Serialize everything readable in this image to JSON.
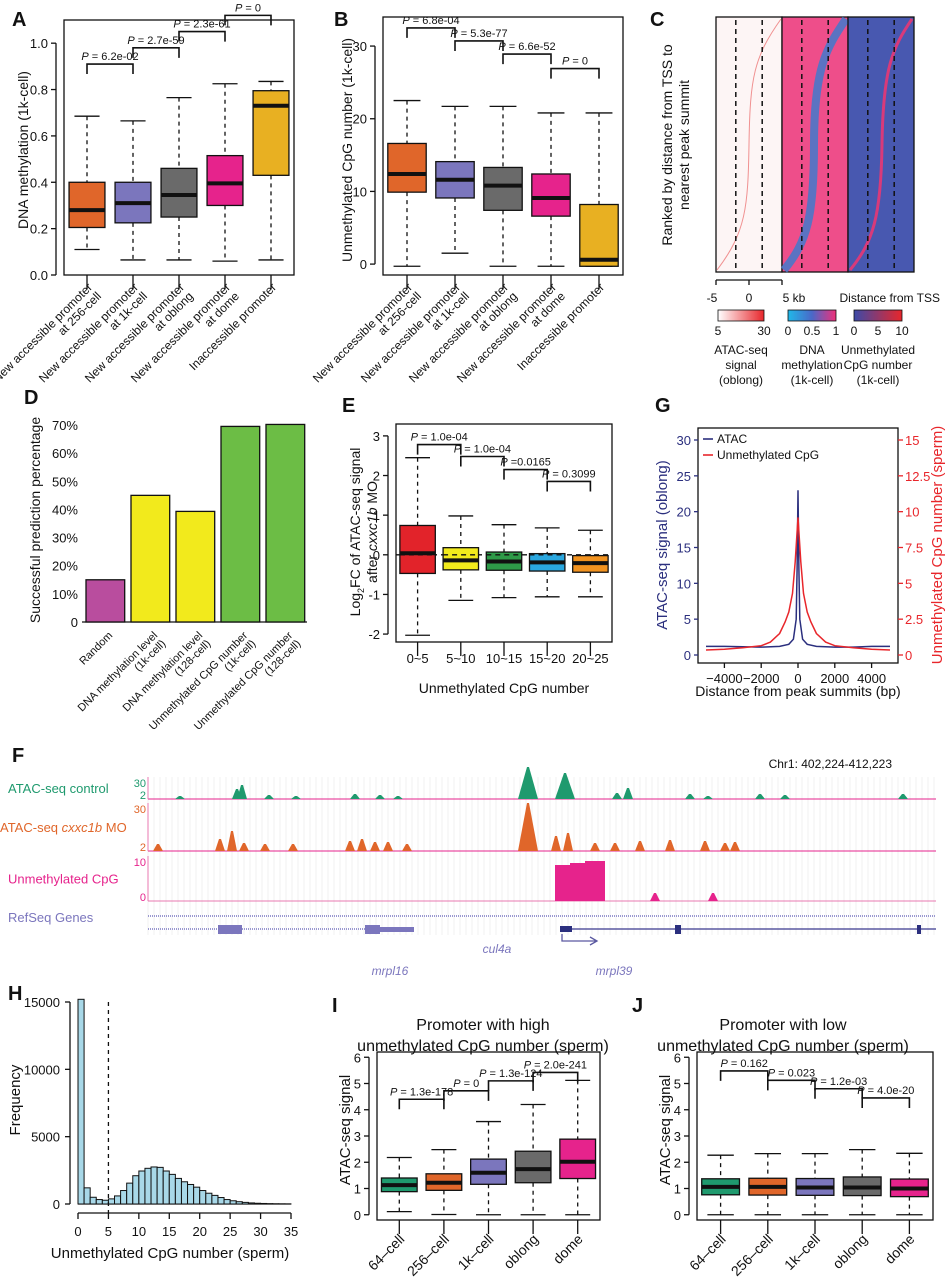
{
  "panels": {
    "A": "A",
    "B": "B",
    "C": "C",
    "D": "D",
    "E": "E",
    "F": "F",
    "G": "G",
    "H": "H",
    "I": "I",
    "J": "J"
  },
  "chart_data": [
    {
      "id": "A",
      "type": "boxplot",
      "ylabel": "DNA methylation (1k-cell)",
      "ylim": [
        0,
        1.1
      ],
      "yticks": [
        "0.0",
        "0.2",
        "0.4",
        "0.6",
        "0.8",
        "1.0"
      ],
      "ytick_values": [
        0,
        0.2,
        0.4,
        0.6,
        0.8,
        1.0
      ],
      "categories": [
        "New accessible promoter at 256-cell",
        "New accessible promoter at 1k-cell",
        "New accessible promoter at oblong",
        "New accessible promoter at dome",
        "Inaccessible promoter"
      ],
      "category_lines": [
        [
          "New accessible promoter",
          "at 256-cell"
        ],
        [
          "New accessible promoter",
          "at 1k-cell"
        ],
        [
          "New accessible promoter",
          "at oblong"
        ],
        [
          "New accessible promoter",
          "at dome"
        ],
        [
          "Inaccessible promoter",
          ""
        ]
      ],
      "colors": [
        "#e0662a",
        "#7b76bd",
        "#6a6a6a",
        "#e6238c",
        "#e8b022"
      ],
      "boxes": [
        {
          "min": 0.11,
          "q1": 0.205,
          "median": 0.28,
          "q3": 0.4,
          "max": 0.685
        },
        {
          "min": 0.065,
          "q1": 0.225,
          "median": 0.31,
          "q3": 0.4,
          "max": 0.665
        },
        {
          "min": 0.065,
          "q1": 0.25,
          "median": 0.345,
          "q3": 0.46,
          "max": 0.765
        },
        {
          "min": 0.06,
          "q1": 0.3,
          "median": 0.395,
          "q3": 0.515,
          "max": 0.825
        },
        {
          "min": 0.065,
          "q1": 0.43,
          "median": 0.73,
          "q3": 0.795,
          "max": 0.835
        }
      ],
      "pvalues": [
        {
          "from": 0,
          "to": 1,
          "label": "P = 6.2e-02",
          "y": 0.91
        },
        {
          "from": 1,
          "to": 2,
          "label": "P = 2.7e-59",
          "y": 0.98
        },
        {
          "from": 2,
          "to": 3,
          "label": "P = 2.3e-61",
          "y": 1.05
        },
        {
          "from": 3,
          "to": 4,
          "label": "P = 0",
          "y": 1.12
        }
      ]
    },
    {
      "id": "B",
      "type": "boxplot",
      "ylabel": "Unmethylated CpG number (1k-cell)",
      "ylim": [
        -1.5,
        34
      ],
      "yticks": [
        "0",
        "10",
        "20",
        "30"
      ],
      "ytick_values": [
        0,
        10,
        20,
        30
      ],
      "categories": [
        "New accessible promoter at 256-cell",
        "New accessible promoter at 1k-cell",
        "New accessible promoter at oblong",
        "New accessible promoter at dome",
        "Inaccessible promoter"
      ],
      "category_lines": [
        [
          "New accessible promoter",
          "at 256-cell"
        ],
        [
          "New accessible promoter",
          "at 1k-cell"
        ],
        [
          "New accessible promoter",
          "at oblong"
        ],
        [
          "New accessible promoter",
          "at dome"
        ],
        [
          "Inaccessible promoter",
          ""
        ]
      ],
      "colors": [
        "#e0662a",
        "#7b76bd",
        "#6a6a6a",
        "#e6238c",
        "#e8b022"
      ],
      "boxes": [
        {
          "min": -0.3,
          "q1": 9.9,
          "median": 12.4,
          "q3": 16.6,
          "max": 22.5
        },
        {
          "min": 1.5,
          "q1": 9.1,
          "median": 11.6,
          "q3": 14.1,
          "max": 21.7
        },
        {
          "min": -0.3,
          "q1": 7.4,
          "median": 10.8,
          "q3": 13.3,
          "max": 21.7
        },
        {
          "min": -0.3,
          "q1": 6.6,
          "median": 9.1,
          "q3": 12.4,
          "max": 20.8
        },
        {
          "min": -0.3,
          "q1": -0.3,
          "median": 0.6,
          "q3": 8.2,
          "max": 20.8
        }
      ],
      "pvalues": [
        {
          "from": 0,
          "to": 1,
          "label": "P = 6.8e-04",
          "y": 32.5
        },
        {
          "from": 1,
          "to": 2,
          "label": "P = 5.3e-77",
          "y": 30.7
        },
        {
          "from": 2,
          "to": 3,
          "label": "P = 6.6e-52",
          "y": 28.9
        },
        {
          "from": 3,
          "to": 4,
          "label": "P = 0",
          "y": 26.9
        }
      ]
    },
    {
      "id": "C",
      "type": "heatmap",
      "ylabel": "Ranked by distance from TSS to nearest peak summit",
      "xticks": [
        "-5",
        "0",
        "5 kb"
      ],
      "xlabel": "Distance from TSS",
      "heatmaps": [
        {
          "name": "ATAC-seq signal (oblong)",
          "scale": [
            "5",
            "30"
          ],
          "label_lines": [
            "ATAC-seq",
            "signal",
            "(oblong)"
          ],
          "colors": [
            "#ffffff",
            "#e8262b"
          ]
        },
        {
          "name": "DNA methylation (1k-cell)",
          "scale": [
            "0",
            "0.5",
            "1"
          ],
          "label_lines": [
            "DNA",
            "methylation",
            "(1k-cell)"
          ],
          "colors": [
            "#20b8e8",
            "#4a68c8",
            "#f0307a"
          ]
        },
        {
          "name": "Unmethylated CpG number (1k-cell)",
          "scale": [
            "0",
            "5",
            "10"
          ],
          "label_lines": [
            "Unmethylated",
            "CpG number",
            "(1k-cell)"
          ],
          "colors": [
            "#3c4aa8",
            "#e8262b"
          ]
        }
      ]
    },
    {
      "id": "D",
      "type": "bar",
      "ylabel": "Successful prediction percentage",
      "ylim": [
        0,
        70
      ],
      "yticks": [
        "0",
        "10%",
        "20%",
        "30%",
        "40%",
        "50%",
        "60%",
        "70%"
      ],
      "ytick_values": [
        0,
        10,
        20,
        30,
        40,
        50,
        60,
        70
      ],
      "categories": [
        "Random",
        "DNA methylation level (1k-cell)",
        "DNA methylation level (128-cell)",
        "Unmethylated CpG number (1k-cell)",
        "Unmethylated CpG number (128-cell)"
      ],
      "category_lines": [
        [
          "Random"
        ],
        [
          "DNA methylation level",
          "(1k-cell)"
        ],
        [
          "DNA methylation level",
          "(128-cell)"
        ],
        [
          "Unmethylated CpG number",
          "(1k-cell)"
        ],
        [
          "Unmethylated CpG number",
          "(128-cell)"
        ]
      ],
      "values": [
        15,
        45,
        39.3,
        69.5,
        70.2
      ],
      "colors": [
        "#b94d9e",
        "#f2ea1c",
        "#f2ea1c",
        "#6cbd45",
        "#6cbd45"
      ]
    },
    {
      "id": "E",
      "type": "boxplot",
      "ylabel_parts": [
        "Log",
        "2",
        "FC of ATAC-seq signal"
      ],
      "ylabel2_parts": [
        "after ",
        "cxxc1b",
        " MO"
      ],
      "xlabel": "Unmethylated CpG number",
      "ylim": [
        -2.2,
        3.3
      ],
      "yticks": [
        "-2",
        "-1",
        "0",
        "1",
        "2",
        "3"
      ],
      "ytick_values": [
        -2,
        -1,
        0,
        1,
        2,
        3
      ],
      "categories": [
        "0~5",
        "5~10",
        "10~15",
        "15~20",
        "20~25"
      ],
      "colors": [
        "#e2232a",
        "#f2ea1c",
        "#2e9a48",
        "#2aa7df",
        "#f29320"
      ],
      "boxes": [
        {
          "min": -2.03,
          "q1": -0.47,
          "median": 0.04,
          "q3": 0.74,
          "max": 2.45
        },
        {
          "min": -1.15,
          "q1": -0.38,
          "median": -0.14,
          "q3": 0.18,
          "max": 0.98
        },
        {
          "min": -1.08,
          "q1": -0.39,
          "median": -0.17,
          "q3": 0.07,
          "max": 0.76
        },
        {
          "min": -1.06,
          "q1": -0.41,
          "median": -0.19,
          "q3": 0.03,
          "max": 0.68
        },
        {
          "min": -1.06,
          "q1": -0.44,
          "median": -0.21,
          "q3": -0.02,
          "max": 0.62
        }
      ],
      "reference_line": 0,
      "pvalues": [
        {
          "from": 0,
          "to": 1,
          "label": "P = 1.0e-04",
          "y": 2.78
        },
        {
          "from": 1,
          "to": 2,
          "label": "P = 1.0e-04",
          "y": 2.48
        },
        {
          "from": 2,
          "to": 3,
          "label": "P =0.0165",
          "y": 2.15
        },
        {
          "from": 3,
          "to": 4,
          "label": "P = 0.3099",
          "y": 1.85
        }
      ]
    },
    {
      "id": "G",
      "type": "line",
      "xlabel": "Distance from peak summits (bp)",
      "ylabel_left": "ATAC-seq signal (oblong)",
      "ylabel_right": "Unmethylated CpG number (sperm)",
      "xlim": [
        -5000,
        5000
      ],
      "xticks": [
        "−4000",
        "−2000",
        "0",
        "2000",
        "4000"
      ],
      "xtick_values": [
        -4000,
        -2000,
        0,
        2000,
        4000
      ],
      "ylim_left": [
        0,
        30
      ],
      "yticks_left": [
        "0",
        "5",
        "10",
        "15",
        "20",
        "25",
        "30"
      ],
      "ytick_values_left": [
        0,
        5,
        10,
        15,
        20,
        25,
        30
      ],
      "ylim_right": [
        0,
        15
      ],
      "yticks_right": [
        "0",
        "2.5",
        "5",
        "7.5",
        "10",
        "12.5",
        "15"
      ],
      "ytick_values_right": [
        0,
        2.5,
        5,
        7.5,
        10,
        12.5,
        15
      ],
      "legend": {
        "position": "top-left"
      },
      "series": [
        {
          "name": "ATAC",
          "axis": "left",
          "color": "#2b2f7e",
          "x": [
            -5000,
            -4000,
            -3000,
            -2000,
            -1000,
            -500,
            -250,
            -100,
            -50,
            0,
            50,
            100,
            250,
            500,
            1000,
            2000,
            3000,
            4000,
            5000
          ],
          "y": [
            1.2,
            1.2,
            1.15,
            1.1,
            1.2,
            1.5,
            2.2,
            5,
            12,
            23,
            12,
            5,
            2.2,
            1.5,
            1.2,
            1.1,
            1.1,
            1.2,
            1.2
          ]
        },
        {
          "name": "Unmethylated CpG",
          "axis": "right",
          "color": "#e8262b",
          "x": [
            -5000,
            -4000,
            -3000,
            -2000,
            -1500,
            -1000,
            -700,
            -500,
            -300,
            -150,
            0,
            150,
            300,
            500,
            700,
            1000,
            1500,
            2000,
            3000,
            4000,
            5000
          ],
          "y": [
            0.35,
            0.4,
            0.5,
            0.65,
            0.9,
            1.5,
            2.3,
            3.0,
            4.3,
            6.5,
            9.6,
            6.5,
            4.3,
            3.0,
            2.3,
            1.5,
            0.9,
            0.65,
            0.5,
            0.4,
            0.35
          ]
        }
      ]
    },
    {
      "id": "F",
      "type": "genome-track",
      "region": "Chr1: 402,224-412,223",
      "tracks": [
        {
          "name": "ATAC-seq control",
          "color": "#1f9a6e",
          "scale_max": "30",
          "scale_min": "2"
        },
        {
          "name_parts": [
            "ATAC-seq ",
            "cxxc1b",
            " MO"
          ],
          "name": "ATAC-seq cxxc1b MO",
          "color": "#e0662a",
          "scale_max": "30",
          "scale_min": "2"
        },
        {
          "name": "Unmethylated CpG",
          "color": "#e6238c",
          "scale_max": "10",
          "scale_min": "0"
        },
        {
          "name": "RefSeq Genes",
          "color": "#7b76bd"
        }
      ],
      "genes": [
        "mrpl16",
        "cul4a",
        "mrpl39"
      ]
    },
    {
      "id": "H",
      "type": "histogram",
      "xlabel": "Unmethylated CpG number (sperm)",
      "ylabel": "Frequency",
      "xlim": [
        0,
        35
      ],
      "ylim": [
        0,
        15000
      ],
      "xticks": [
        "0",
        "5",
        "10",
        "15",
        "20",
        "25",
        "30",
        "35"
      ],
      "xtick_values": [
        0,
        5,
        10,
        15,
        20,
        25,
        30,
        35
      ],
      "yticks": [
        "0",
        "5000",
        "10000",
        "15000"
      ],
      "ytick_values": [
        0,
        5000,
        10000,
        15000
      ],
      "bin_width": 1,
      "values": [
        15200,
        1200,
        500,
        330,
        280,
        380,
        600,
        1000,
        1550,
        2100,
        2450,
        2650,
        2750,
        2720,
        2450,
        2200,
        1900,
        1650,
        1450,
        1250,
        1000,
        800,
        640,
        480,
        330,
        240,
        170,
        120,
        80,
        55,
        40,
        25,
        15,
        10,
        5
      ],
      "color": "#a8d8e8",
      "reference_line": 5
    },
    {
      "id": "I",
      "type": "boxplot",
      "title_lines": [
        "Promoter with high",
        "unmethylated CpG number (sperm)"
      ],
      "ylabel": "ATAC-seq signal",
      "ylim": [
        -0.2,
        6.2
      ],
      "yticks": [
        "0",
        "1",
        "2",
        "3",
        "4",
        "5",
        "6"
      ],
      "ytick_values": [
        0,
        1,
        2,
        3,
        4,
        5,
        6
      ],
      "categories": [
        "64–cell",
        "256–cell",
        "1k–cell",
        "oblong",
        "dome"
      ],
      "colors": [
        "#1f9a6e",
        "#e0662a",
        "#7b76bd",
        "#6a6a6a",
        "#e6238c"
      ],
      "boxes": [
        {
          "min": 0.12,
          "q1": 0.88,
          "median": 1.13,
          "q3": 1.4,
          "max": 2.18
        },
        {
          "min": 0.01,
          "q1": 0.93,
          "median": 1.22,
          "q3": 1.56,
          "max": 2.48
        },
        {
          "min": 0.0,
          "q1": 1.16,
          "median": 1.6,
          "q3": 2.12,
          "max": 3.55
        },
        {
          "min": 0.0,
          "q1": 1.22,
          "median": 1.74,
          "q3": 2.42,
          "max": 4.2
        },
        {
          "min": 0.0,
          "q1": 1.38,
          "median": 2.02,
          "q3": 2.88,
          "max": 5.12
        }
      ],
      "pvalues": [
        {
          "from": 0,
          "to": 1,
          "label": "P = 1.3e-178",
          "y": 4.4
        },
        {
          "from": 1,
          "to": 2,
          "label": "P = 0",
          "y": 4.72
        },
        {
          "from": 2,
          "to": 3,
          "label": "P = 1.3e-124",
          "y": 5.1
        },
        {
          "from": 3,
          "to": 4,
          "label": "P = 2.0e-241",
          "y": 5.42
        }
      ]
    },
    {
      "id": "J",
      "type": "boxplot",
      "title_lines": [
        "Promoter with low",
        "unmethylated CpG number (sperm)"
      ],
      "ylabel": "ATAC-seq signal",
      "ylim": [
        -0.2,
        6.2
      ],
      "yticks": [
        "0",
        "1",
        "2",
        "3",
        "4",
        "5",
        "6"
      ],
      "ytick_values": [
        0,
        1,
        2,
        3,
        4,
        5,
        6
      ],
      "categories": [
        "64–cell",
        "256–cell",
        "1k–cell",
        "oblong",
        "dome"
      ],
      "colors": [
        "#1f9a6e",
        "#e0662a",
        "#7b76bd",
        "#6a6a6a",
        "#e6238c"
      ],
      "boxes": [
        {
          "min": 0.0,
          "q1": 0.76,
          "median": 1.06,
          "q3": 1.37,
          "max": 2.27
        },
        {
          "min": 0.0,
          "q1": 0.75,
          "median": 1.06,
          "q3": 1.39,
          "max": 2.33
        },
        {
          "min": 0.0,
          "q1": 0.74,
          "median": 1.04,
          "q3": 1.38,
          "max": 2.33
        },
        {
          "min": 0.0,
          "q1": 0.73,
          "median": 1.04,
          "q3": 1.44,
          "max": 2.48
        },
        {
          "min": 0.0,
          "q1": 0.69,
          "median": 1.0,
          "q3": 1.36,
          "max": 2.34
        }
      ],
      "pvalues": [
        {
          "from": 0,
          "to": 1,
          "label": "P = 0.162",
          "y": 5.48
        },
        {
          "from": 1,
          "to": 2,
          "label": "P = 0.023",
          "y": 5.12
        },
        {
          "from": 2,
          "to": 3,
          "label": "P = 1.2e-03",
          "y": 4.8
        },
        {
          "from": 3,
          "to": 4,
          "label": "P = 4.0e-20",
          "y": 4.45
        }
      ]
    }
  ]
}
